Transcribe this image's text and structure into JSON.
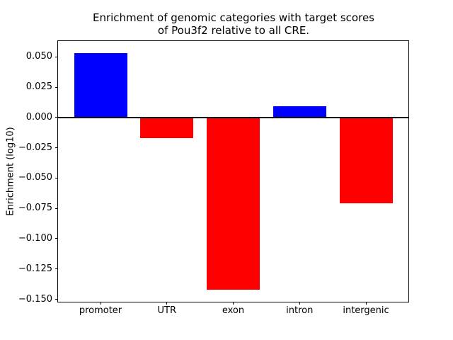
{
  "figure": {
    "title": "Enrichment of genomic categories with target scores\nof Pou3f2 relative to all CRE.",
    "ylabel": "Enrichment (log10)"
  },
  "chart_data": {
    "type": "bar",
    "title": "Enrichment of genomic categories with target scores of Pou3f2 relative to all CRE.",
    "xlabel": "",
    "ylabel": "Enrichment (log10)",
    "categories": [
      "promoter",
      "UTR",
      "exon",
      "intron",
      "intergenic"
    ],
    "values": [
      0.053,
      -0.017,
      -0.142,
      0.009,
      -0.071
    ],
    "bar_colors": [
      "#0000ff",
      "#ff0000",
      "#ff0000",
      "#0000ff",
      "#ff0000"
    ],
    "positive_color": "#0000ff",
    "negative_color": "#ff0000",
    "bar_width": 0.8,
    "xlim": [
      -0.64,
      4.64
    ],
    "ylim": [
      -0.152,
      0.063
    ],
    "yticks": [
      0.05,
      0.025,
      0,
      -0.025,
      -0.05,
      -0.075,
      -0.1,
      -0.125,
      -0.15
    ],
    "ytick_labels": [
      "0.050",
      "0.025",
      "0.000",
      "−0.025",
      "−0.050",
      "−0.075",
      "−0.100",
      "−0.125",
      "−0.150"
    ],
    "grid": false,
    "legend": false,
    "zero_line": true,
    "axis_color": "#000000",
    "background": "#ffffff"
  }
}
